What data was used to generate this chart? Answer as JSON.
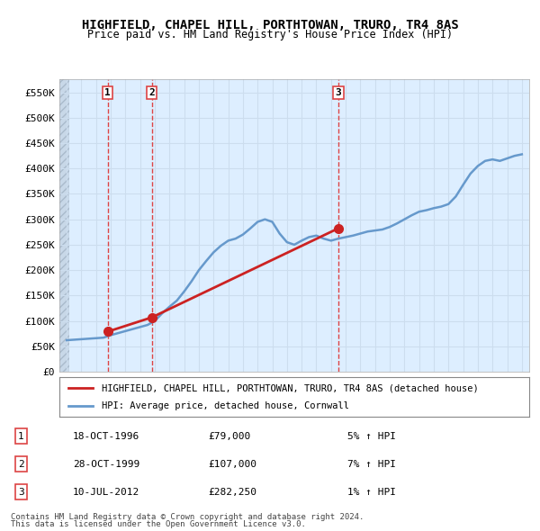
{
  "title": "HIGHFIELD, CHAPEL HILL, PORTHTOWAN, TRURO, TR4 8AS",
  "subtitle": "Price paid vs. HM Land Registry's House Price Index (HPI)",
  "legend_line1": "HIGHFIELD, CHAPEL HILL, PORTHTOWAN, TRURO, TR4 8AS (detached house)",
  "legend_line2": "HPI: Average price, detached house, Cornwall",
  "footer1": "Contains HM Land Registry data © Crown copyright and database right 2024.",
  "footer2": "This data is licensed under the Open Government Licence v3.0.",
  "transactions": [
    {
      "num": 1,
      "date": "18-OCT-1996",
      "price": 79000,
      "hpi_pct": "5% ↑ HPI",
      "x_year": 1996.8
    },
    {
      "num": 2,
      "date": "28-OCT-1999",
      "price": 107000,
      "hpi_pct": "7% ↑ HPI",
      "x_year": 1999.8
    },
    {
      "num": 3,
      "date": "10-JUL-2012",
      "price": 282250,
      "hpi_pct": "1% ↑ HPI",
      "x_year": 2012.5
    }
  ],
  "hpi_line": {
    "years": [
      1994,
      1994.5,
      1995,
      1995.5,
      1996,
      1996.5,
      1997,
      1997.5,
      1998,
      1998.5,
      1999,
      1999.5,
      2000,
      2000.5,
      2001,
      2001.5,
      2002,
      2002.5,
      2003,
      2003.5,
      2004,
      2004.5,
      2005,
      2005.5,
      2006,
      2006.5,
      2007,
      2007.5,
      2008,
      2008.5,
      2009,
      2009.5,
      2010,
      2010.5,
      2011,
      2011.5,
      2012,
      2012.5,
      2013,
      2013.5,
      2014,
      2014.5,
      2015,
      2015.5,
      2016,
      2016.5,
      2017,
      2017.5,
      2018,
      2018.5,
      2019,
      2019.5,
      2020,
      2020.5,
      2021,
      2021.5,
      2022,
      2022.5,
      2023,
      2023.5,
      2024,
      2024.5,
      2025
    ],
    "values": [
      62000,
      63000,
      64000,
      65000,
      66000,
      67000,
      72000,
      76000,
      80000,
      84000,
      88000,
      92000,
      100000,
      115000,
      128000,
      140000,
      158000,
      178000,
      200000,
      218000,
      235000,
      248000,
      258000,
      262000,
      270000,
      282000,
      295000,
      300000,
      295000,
      272000,
      255000,
      250000,
      258000,
      265000,
      268000,
      262000,
      258000,
      262000,
      265000,
      268000,
      272000,
      276000,
      278000,
      280000,
      285000,
      292000,
      300000,
      308000,
      315000,
      318000,
      322000,
      325000,
      330000,
      345000,
      368000,
      390000,
      405000,
      415000,
      418000,
      415000,
      420000,
      425000,
      428000
    ]
  },
  "price_line": {
    "years": [
      1996.8,
      1999.8,
      2012.5
    ],
    "values": [
      79000,
      107000,
      282250
    ]
  },
  "ylim": [
    0,
    575000
  ],
  "xlim": [
    1993.5,
    2025.5
  ],
  "yticks": [
    0,
    50000,
    100000,
    150000,
    200000,
    250000,
    300000,
    350000,
    400000,
    450000,
    500000,
    550000
  ],
  "ytick_labels": [
    "£0",
    "£50K",
    "£100K",
    "£150K",
    "£200K",
    "£250K",
    "£300K",
    "£350K",
    "£400K",
    "£450K",
    "£500K",
    "£550K"
  ],
  "xticks": [
    1994,
    1995,
    1996,
    1997,
    1998,
    1999,
    2000,
    2001,
    2002,
    2003,
    2004,
    2005,
    2006,
    2007,
    2008,
    2009,
    2010,
    2011,
    2012,
    2013,
    2014,
    2015,
    2016,
    2017,
    2018,
    2019,
    2020,
    2021,
    2022,
    2023,
    2024,
    2025
  ],
  "hpi_color": "#6699cc",
  "price_color": "#cc2222",
  "dot_color": "#cc2222",
  "vline_color": "#dd4444",
  "grid_color": "#ccddee",
  "bg_color": "#eef4fa",
  "plot_bg": "#ddeeff",
  "hatch_color": "#c8d8e8"
}
